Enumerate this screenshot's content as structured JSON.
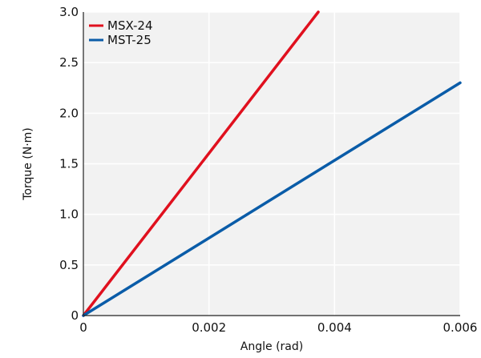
{
  "chart_data": {
    "type": "line",
    "xlabel": "Angle (rad)",
    "ylabel": "Torque (N·m)",
    "xlim": [
      0,
      0.006
    ],
    "ylim": [
      0,
      3.0
    ],
    "x_ticks": [
      0,
      0.002,
      0.004,
      0.006
    ],
    "x_tick_labels": [
      "0",
      "0.002",
      "0.004",
      "0.006"
    ],
    "y_ticks": [
      0,
      0.5,
      1.0,
      1.5,
      2.0,
      2.5,
      3.0
    ],
    "y_tick_labels": [
      "0",
      "0.5",
      "1.0",
      "1.5",
      "2.0",
      "2.5",
      "3.0"
    ],
    "grid": true,
    "background": "#f2f2f2",
    "legend_position": "top-left",
    "series": [
      {
        "name": "MSX-24",
        "color": "#e0101e",
        "x": [
          0,
          0.00374
        ],
        "y": [
          0,
          3.0
        ]
      },
      {
        "name": "MST-25",
        "color": "#0a5ca8",
        "x": [
          0,
          0.006
        ],
        "y": [
          0,
          2.3
        ]
      }
    ]
  }
}
